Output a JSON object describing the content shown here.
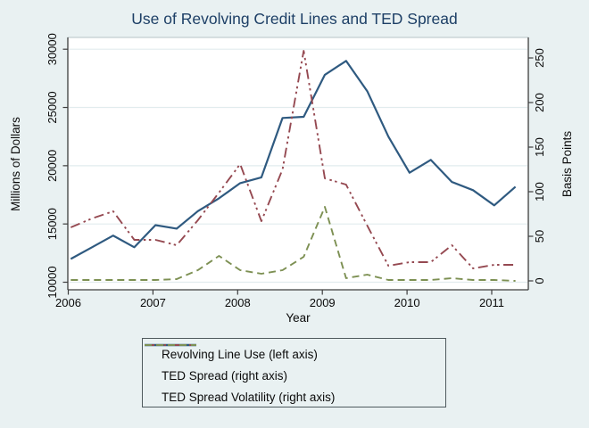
{
  "title": "Use of Revolving Credit Lines and TED Spread",
  "colors": {
    "background": "#e9f1f2",
    "title_text": "#1d3f66",
    "plot_background": "#ffffff",
    "gridline": "#e2ecee",
    "axis_line": "#3d3d3d",
    "plot_border": "#b7c3c7",
    "legend_border": "#4f5a5e"
  },
  "chart_data": {
    "type": "line",
    "title": "Use of Revolving Credit Lines and TED Spread",
    "xlabel": "Year",
    "ylabel_left": "Millions of Dollars",
    "ylabel_right": "Basis Points",
    "grid": "horizontal",
    "legend_position": "bottom",
    "x_tick_labels": [
      "2006",
      "2007",
      "2008",
      "2009",
      "2010",
      "2011"
    ],
    "x_tick_years": [
      2006,
      2007,
      2008,
      2009,
      2010,
      2011
    ],
    "left_ticks": [
      10000,
      15000,
      20000,
      25000,
      30000
    ],
    "right_ticks": [
      0,
      50,
      100,
      150,
      200,
      250
    ],
    "ylim_left": [
      10000,
      30000
    ],
    "ylim_right": [
      0,
      250
    ],
    "x_start_year": 2006,
    "x_step": 0.25,
    "categories": [
      "2006q1",
      "2006q2",
      "2006q3",
      "2006q4",
      "2007q1",
      "2007q2",
      "2007q3",
      "2007q4",
      "2008q1",
      "2008q2",
      "2008q3",
      "2008q4",
      "2009q1",
      "2009q2",
      "2009q3",
      "2009q4",
      "2010q1",
      "2010q2",
      "2010q3",
      "2010q4",
      "2011q1",
      "2011q2"
    ],
    "series": [
      {
        "name": "Revolving Line Use (left axis)",
        "axis": "left",
        "color": "#2f5a80",
        "style": "solid",
        "values": [
          12000,
          13000,
          14000,
          13000,
          14900,
          14600,
          16100,
          17200,
          18500,
          19000,
          24100,
          24200,
          27800,
          29000,
          26400,
          22500,
          19400,
          20500,
          18600,
          17900,
          16600,
          18200
        ]
      },
      {
        "name": "TED Spread (right axis)",
        "axis": "right",
        "color": "#954951",
        "style": "dash-dot-dot",
        "values": [
          60,
          70,
          78,
          46,
          46,
          40,
          68,
          99,
          131,
          67,
          125,
          258,
          115,
          108,
          62,
          17,
          21,
          21,
          40,
          14,
          18,
          18
        ]
      },
      {
        "name": "TED Spread Volatility (right axis)",
        "axis": "right",
        "color": "#7d9053",
        "style": "dash",
        "values": [
          1,
          1,
          1,
          1,
          1,
          2,
          12,
          28,
          12,
          8,
          12,
          27,
          83,
          3,
          7,
          1,
          1,
          1,
          3,
          1,
          1,
          0
        ]
      }
    ]
  }
}
